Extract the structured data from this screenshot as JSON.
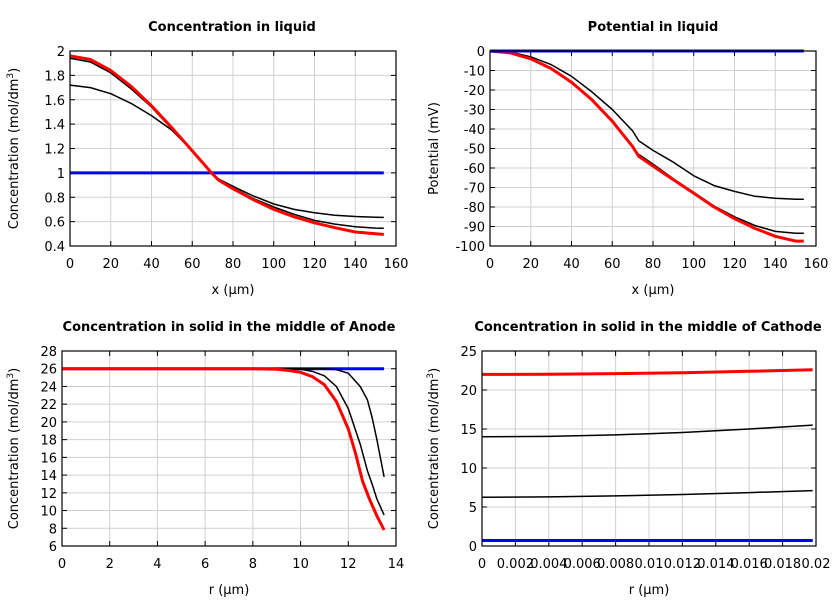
{
  "chart_data": [
    {
      "type": "line",
      "title": "Concentration in liquid",
      "xlabel": "x (µm)",
      "ylabel": "Concentration (mol/dm",
      "ylabel_sup": "3",
      "ylabel_end": ")",
      "xlim": [
        0,
        160
      ],
      "ylim": [
        0.4,
        2
      ],
      "xticks": [
        0,
        20,
        40,
        60,
        80,
        100,
        120,
        140,
        160
      ],
      "xtick_labels": [
        "0",
        "20",
        "40",
        "60",
        "80",
        "100",
        "120",
        "140",
        "160"
      ],
      "yticks": [
        0.4,
        0.6,
        0.8,
        1,
        1.2,
        1.4,
        1.6,
        1.8,
        2
      ],
      "ytick_labels": [
        "0.4",
        "0.6",
        "0.8",
        "1",
        "1.2",
        "1.4",
        "1.6",
        "1.8",
        "2"
      ],
      "grid": true,
      "series": [
        {
          "color": "#0000ff",
          "x": [
            0,
            154
          ],
          "y": [
            1,
            1
          ]
        },
        {
          "color": "#000000",
          "x": [
            0,
            10,
            20,
            30,
            40,
            50,
            60,
            70,
            73,
            80,
            90,
            100,
            110,
            120,
            130,
            140,
            150,
            154
          ],
          "y": [
            1.72,
            1.7,
            1.65,
            1.57,
            1.47,
            1.35,
            1.18,
            0.99,
            0.95,
            0.89,
            0.81,
            0.745,
            0.7,
            0.672,
            0.652,
            0.642,
            0.636,
            0.635
          ]
        },
        {
          "color": "#000000",
          "x": [
            0,
            10,
            20,
            30,
            40,
            50,
            60,
            70,
            73,
            80,
            90,
            100,
            110,
            120,
            130,
            140,
            150,
            154
          ],
          "y": [
            1.94,
            1.91,
            1.82,
            1.69,
            1.54,
            1.36,
            1.18,
            0.99,
            0.945,
            0.88,
            0.79,
            0.72,
            0.66,
            0.61,
            0.58,
            0.558,
            0.547,
            0.545
          ]
        },
        {
          "color": "#ff0000",
          "x": [
            0,
            10,
            20,
            30,
            40,
            50,
            60,
            70,
            73,
            80,
            90,
            100,
            110,
            120,
            130,
            140,
            150,
            154
          ],
          "y": [
            1.96,
            1.93,
            1.84,
            1.71,
            1.55,
            1.37,
            1.18,
            0.99,
            0.94,
            0.87,
            0.78,
            0.7,
            0.64,
            0.59,
            0.55,
            0.515,
            0.5,
            0.495
          ]
        }
      ]
    },
    {
      "type": "line",
      "title": "Potential in liquid",
      "xlabel": "x (µm)",
      "ylabel": "Potential (mV)",
      "xlim": [
        0,
        160
      ],
      "ylim": [
        -100,
        0
      ],
      "xticks": [
        0,
        20,
        40,
        60,
        80,
        100,
        120,
        140,
        160
      ],
      "xtick_labels": [
        "0",
        "20",
        "40",
        "60",
        "80",
        "100",
        "120",
        "140",
        "160"
      ],
      "yticks": [
        -100,
        -90,
        -80,
        -70,
        -60,
        -50,
        -40,
        -30,
        -20,
        -10,
        0
      ],
      "ytick_labels": [
        "-100",
        "-90",
        "-80",
        "-70",
        "-60",
        "-50",
        "-40",
        "-30",
        "-20",
        "-10",
        "0"
      ],
      "grid": true,
      "series": [
        {
          "color": "#000000",
          "x": [
            0,
            10,
            20,
            30,
            40,
            50,
            60,
            70,
            73,
            80,
            90,
            100,
            110,
            120,
            130,
            140,
            150,
            154
          ],
          "y": [
            0,
            -0.5,
            -3,
            -7,
            -13,
            -21,
            -30,
            -41,
            -46,
            -51,
            -57,
            -64,
            -69,
            -72,
            -74.5,
            -75.5,
            -76,
            -76
          ]
        },
        {
          "color": "#000000",
          "x": [
            0,
            10,
            20,
            30,
            40,
            50,
            60,
            70,
            73,
            80,
            90,
            100,
            110,
            120,
            130,
            140,
            150,
            154
          ],
          "y": [
            0,
            -1,
            -4,
            -9,
            -16,
            -25,
            -36,
            -49,
            -53,
            -58,
            -65.5,
            -72.5,
            -79.5,
            -85,
            -89.5,
            -92.5,
            -93.5,
            -93.5
          ]
        },
        {
          "color": "#ff0000",
          "x": [
            0,
            10,
            20,
            30,
            40,
            50,
            60,
            70,
            73,
            80,
            90,
            100,
            110,
            120,
            130,
            140,
            150,
            154
          ],
          "y": [
            0,
            -1,
            -4,
            -9,
            -16,
            -25,
            -36,
            -49,
            -54,
            -59,
            -66,
            -73,
            -80,
            -86,
            -91,
            -95,
            -97.5,
            -97.5
          ]
        },
        {
          "color": "#0000ff",
          "x": [
            0,
            154
          ],
          "y": [
            0,
            0
          ]
        }
      ]
    },
    {
      "type": "line",
      "title": "Concentration in solid in the middle of Anode",
      "xlabel": "r (µm)",
      "ylabel": "Concentration (mol/dm",
      "ylabel_sup": "3",
      "ylabel_end": ")",
      "xlim": [
        0,
        14
      ],
      "ylim": [
        6,
        28
      ],
      "xticks": [
        0,
        2,
        4,
        6,
        8,
        10,
        12,
        14
      ],
      "xtick_labels": [
        "0",
        "2",
        "4",
        "6",
        "8",
        "10",
        "12",
        "14"
      ],
      "yticks": [
        6,
        8,
        10,
        12,
        14,
        16,
        18,
        20,
        22,
        24,
        26,
        28
      ],
      "ytick_labels": [
        "6",
        "8",
        "10",
        "12",
        "14",
        "16",
        "18",
        "20",
        "22",
        "24",
        "26",
        "28"
      ],
      "grid": true,
      "series": [
        {
          "color": "#0000ff",
          "x": [
            0,
            13.5
          ],
          "y": [
            26,
            26
          ]
        },
        {
          "color": "#000000",
          "x": [
            0,
            11,
            11.5,
            12,
            12.5,
            12.8,
            13,
            13.2,
            13.5
          ],
          "y": [
            26,
            26,
            25.9,
            25.5,
            24,
            22.5,
            20.5,
            18,
            13.8
          ]
        },
        {
          "color": "#000000",
          "x": [
            0,
            10,
            10.5,
            11,
            11.5,
            12,
            12.5,
            12.8,
            13,
            13.2,
            13.5
          ],
          "y": [
            26,
            25.95,
            25.7,
            25.2,
            24,
            21.5,
            17.5,
            14.5,
            13,
            11.3,
            9.5
          ]
        },
        {
          "color": "#ff0000",
          "x": [
            0,
            8,
            9,
            9.5,
            10,
            10.5,
            11,
            11.5,
            12,
            12.3,
            12.6,
            12.9,
            13.2,
            13.5
          ],
          "y": [
            26,
            26,
            25.95,
            25.8,
            25.6,
            25.1,
            24.2,
            22.3,
            19.2,
            16.5,
            13.3,
            11.2,
            9.4,
            7.8
          ]
        }
      ]
    },
    {
      "type": "line",
      "title": "Concentration in solid in the middle of Cathode",
      "xlabel": "r (µm)",
      "ylabel": "Concentration (mol/dm",
      "ylabel_sup": "3",
      "ylabel_end": ")",
      "xlim": [
        0,
        0.02
      ],
      "ylim": [
        0,
        25
      ],
      "xticks": [
        0,
        0.002,
        0.004,
        0.006,
        0.008,
        0.01,
        0.012,
        0.014,
        0.016,
        0.018,
        0.02
      ],
      "xtick_labels": [
        "0",
        "0.002",
        "0.004",
        "0.006",
        "0.008",
        "0.01",
        "0.012",
        "0.014",
        "0.016",
        "0.018",
        "0.02"
      ],
      "yticks": [
        0,
        5,
        10,
        15,
        20,
        25
      ],
      "ytick_labels": [
        "0",
        "5",
        "10",
        "15",
        "20",
        "25"
      ],
      "grid": true,
      "series": [
        {
          "color": "#0000ff",
          "x": [
            0,
            0.0198
          ],
          "y": [
            0.7,
            0.7
          ]
        },
        {
          "color": "#000000",
          "x": [
            0,
            0.004,
            0.008,
            0.012,
            0.016,
            0.0198
          ],
          "y": [
            6.25,
            6.3,
            6.42,
            6.6,
            6.85,
            7.1
          ]
        },
        {
          "color": "#000000",
          "x": [
            0,
            0.004,
            0.008,
            0.012,
            0.016,
            0.0198
          ],
          "y": [
            14.0,
            14.05,
            14.25,
            14.55,
            15.0,
            15.5
          ]
        },
        {
          "color": "#ff0000",
          "x": [
            0,
            0.004,
            0.008,
            0.012,
            0.016,
            0.0198
          ],
          "y": [
            22.0,
            22.02,
            22.1,
            22.22,
            22.4,
            22.6
          ]
        }
      ]
    }
  ]
}
